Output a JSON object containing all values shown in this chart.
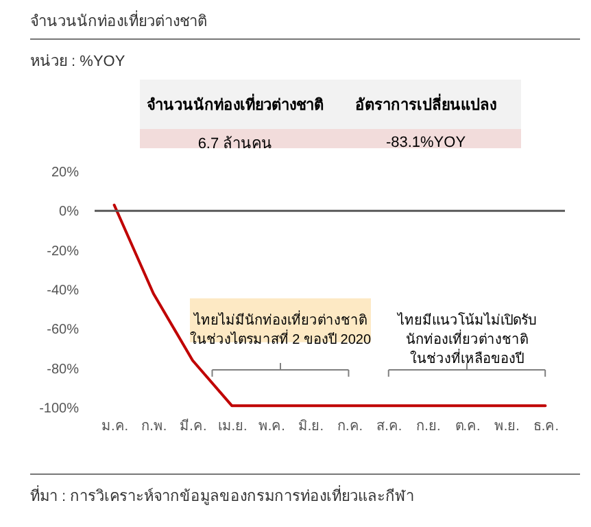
{
  "chart_data": {
    "type": "line",
    "title": "จำนวนนักท่องเที่ยวต่างชาติ",
    "subtitle": "หน่วย : %YOY",
    "categories": [
      "ม.ค.",
      "ก.พ.",
      "มี.ค.",
      "เม.ย.",
      "พ.ค.",
      "มิ.ย.",
      "ก.ค.",
      "ส.ค.",
      "ก.ย.",
      "ต.ค.",
      "พ.ย.",
      "ธ.ค."
    ],
    "series": [
      {
        "color": "#c00000",
        "values": [
          3,
          -42,
          -76,
          -99,
          -99,
          -99,
          -99,
          -99,
          -99,
          -99,
          -99,
          -99
        ]
      }
    ],
    "ylim": [
      -100,
      20
    ],
    "yticks": [
      {
        "value": 20,
        "label": "20%"
      },
      {
        "value": 0,
        "label": "0%"
      },
      {
        "value": -20,
        "label": "-20%"
      },
      {
        "value": -40,
        "label": "-40%"
      },
      {
        "value": -60,
        "label": "-60%"
      },
      {
        "value": -80,
        "label": "-80%"
      },
      {
        "value": -100,
        "label": "-100%"
      }
    ],
    "ref_lines": [
      {
        "axis": "y",
        "value": 0,
        "color": "#595959"
      }
    ],
    "annotations": [
      "จำนวนนักท่องเที่ยวต่างชาติ",
      "อัตราการเปลี่ยนแปลง",
      "6.7 ล้านคน",
      "-83.1%YOY",
      "ไทยไม่มีนักท่องเที่ยวต่างชาติ\nในช่วงไตรมาสที่ 2 ของปี 2020",
      "ไทยมีแนวโน้มไม่เปิดรับ\nนักท่องเที่ยวต่างชาติ\nในช่วงที่เหลือของปี",
      "ที่มา : การวิเคราะห์จากข้อมูลของกรมการท่องเที่ยวและกีฬา"
    ],
    "marker": "none",
    "line_style": "solid"
  }
}
